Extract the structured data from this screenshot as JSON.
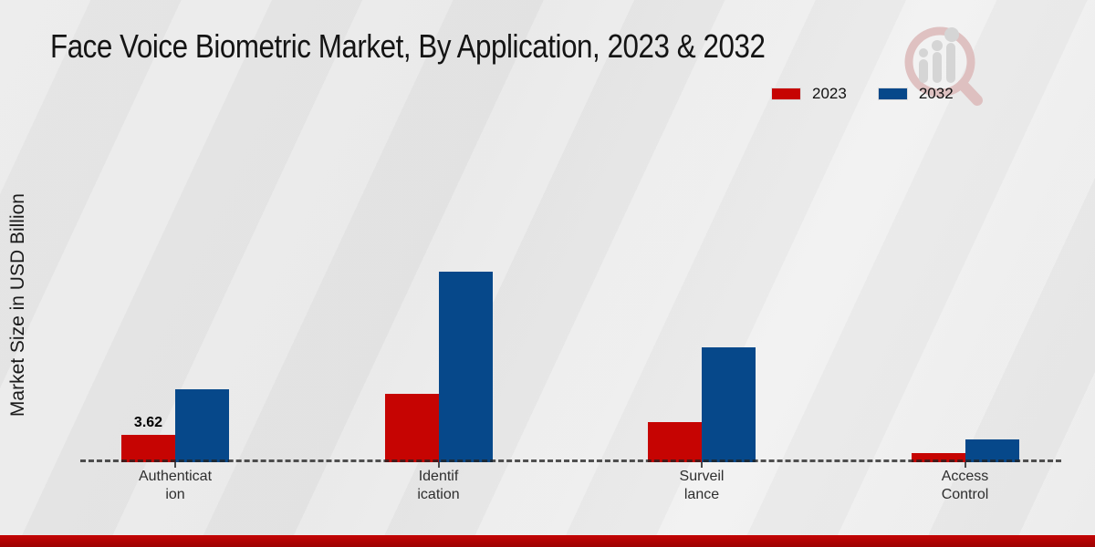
{
  "title": "Face Voice Biometric Market, By Application, 2023 & 2032",
  "y_axis_label": "Market Size in USD Billion",
  "legend": {
    "items": [
      {
        "label": "2023",
        "color": "#c60402"
      },
      {
        "label": "2032",
        "color": "#06488a"
      }
    ]
  },
  "chart_data": {
    "type": "bar",
    "title": "Face Voice Biometric Market, By Application, 2023 & 2032",
    "ylabel": "Market Size in USD Billion",
    "xlabel": "",
    "categories": [
      "Authentication",
      "Identification",
      "Surveillance",
      "Access Control"
    ],
    "category_label_lines": [
      [
        "Authenticat",
        "ion"
      ],
      [
        "Identif",
        "ication"
      ],
      [
        "Surveil",
        "lance"
      ],
      [
        "Access",
        "Control"
      ]
    ],
    "series": [
      {
        "name": "2023",
        "color": "#c60402",
        "values": [
          3.62,
          9.05,
          5.3,
          1.2
        ]
      },
      {
        "name": "2032",
        "color": "#06488a",
        "values": [
          9.6,
          25.2,
          15.2,
          3.0
        ]
      }
    ],
    "bar_value_labels": [
      {
        "series": "2023",
        "category": "Authentication",
        "text": "3.62"
      }
    ],
    "ylim": [
      0,
      26
    ],
    "grid": false,
    "legend_position": "top-right",
    "baseline_style": "dashed"
  },
  "branding": {
    "watermark": "magnifier-growth-chart-logo"
  },
  "footer": {
    "accent_color": "#b30303"
  }
}
